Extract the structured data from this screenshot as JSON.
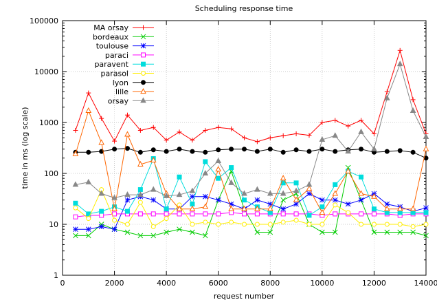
{
  "chart_data": {
    "type": "line",
    "title": "Scheduling response time",
    "xlabel": "request number",
    "ylabel": "time in ms (log scale)",
    "xlim": [
      0,
      14000
    ],
    "ylim": [
      1,
      100000
    ],
    "yscale": "log",
    "x_ticks": [
      "0",
      "2000",
      "4000",
      "6000",
      "8000",
      "10000",
      "12000",
      "14000"
    ],
    "y_ticks": [
      "1",
      "10",
      "100",
      "1000",
      "10000",
      "100000"
    ],
    "legend_position": "top-left",
    "x": [
      500,
      1000,
      1500,
      2000,
      2500,
      3000,
      3500,
      4000,
      4500,
      5000,
      5500,
      6000,
      6500,
      7000,
      7500,
      8000,
      8500,
      9000,
      9500,
      10000,
      10500,
      11000,
      11500,
      12000,
      12500,
      13000,
      13500,
      14000
    ],
    "series": [
      {
        "name": "MA orsay",
        "color": "#ff0000",
        "marker": "plus",
        "values": [
          700,
          3800,
          1200,
          430,
          1400,
          700,
          800,
          450,
          650,
          450,
          700,
          800,
          750,
          500,
          420,
          500,
          550,
          600,
          560,
          1000,
          1100,
          850,
          1100,
          600,
          4000,
          26000,
          2800,
          600
        ]
      },
      {
        "name": "bordeaux",
        "color": "#00cc00",
        "marker": "cross",
        "values": [
          6,
          6,
          10,
          8,
          7,
          6,
          6,
          7,
          8,
          7,
          6,
          30,
          110,
          20,
          7,
          7,
          30,
          40,
          10,
          7,
          7,
          130,
          30,
          7,
          7,
          7,
          7,
          6
        ]
      },
      {
        "name": "toulouse",
        "color": "#0000ff",
        "marker": "star",
        "values": [
          8,
          8,
          9,
          8,
          30,
          35,
          30,
          20,
          20,
          35,
          35,
          30,
          25,
          20,
          30,
          25,
          20,
          25,
          40,
          30,
          30,
          25,
          30,
          40,
          25,
          22,
          18,
          21
        ]
      },
      {
        "name": "paraci",
        "color": "#ff00ff",
        "marker": "square-open",
        "values": [
          14,
          15,
          15,
          16,
          16,
          16,
          16,
          16,
          16,
          16,
          16,
          16,
          17,
          16,
          16,
          16,
          16,
          16,
          16,
          15,
          16,
          16,
          16,
          16,
          16,
          15,
          16,
          16
        ]
      },
      {
        "name": "paravent",
        "color": "#00dddd",
        "marker": "square-filled",
        "values": [
          26,
          16,
          18,
          22,
          18,
          48,
          195,
          20,
          85,
          25,
          170,
          80,
          130,
          30,
          22,
          17,
          65,
          65,
          15,
          22,
          60,
          110,
          85,
          20,
          17,
          17,
          17,
          17
        ]
      },
      {
        "name": "parasol",
        "color": "#ffee00",
        "marker": "circle-open",
        "values": [
          21,
          13,
          48,
          12,
          10,
          27,
          9,
          13,
          24,
          10,
          11,
          10,
          11,
          10,
          10,
          10,
          11,
          12,
          10,
          10,
          24,
          17,
          10,
          10,
          10,
          10,
          9,
          10
        ]
      },
      {
        "name": "lyon",
        "color": "#000000",
        "marker": "circle-filled",
        "values": [
          260,
          260,
          270,
          300,
          310,
          260,
          290,
          270,
          300,
          270,
          260,
          290,
          300,
          300,
          270,
          300,
          260,
          290,
          270,
          300,
          270,
          290,
          300,
          260,
          270,
          280,
          260,
          200
        ]
      },
      {
        "name": "lille",
        "color": "#ff6600",
        "marker": "triangle-open",
        "values": [
          240,
          1700,
          400,
          20,
          580,
          150,
          180,
          40,
          20,
          20,
          22,
          120,
          20,
          20,
          20,
          20,
          80,
          30,
          50,
          17,
          40,
          110,
          40,
          35,
          20,
          20,
          20,
          300
        ]
      },
      {
        "name": "orsay",
        "color": "#888888",
        "marker": "triangle-filled",
        "values": [
          60,
          67,
          40,
          33,
          38,
          38,
          48,
          36,
          38,
          45,
          100,
          175,
          65,
          40,
          48,
          40,
          40,
          45,
          60,
          460,
          550,
          270,
          650,
          300,
          3000,
          14000,
          1700,
          520
        ]
      }
    ]
  }
}
